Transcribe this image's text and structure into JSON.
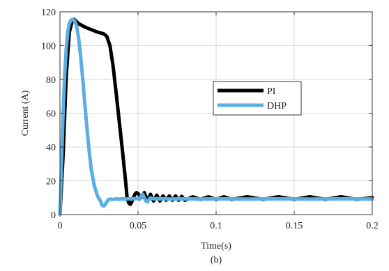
{
  "chart_data": {
    "type": "line",
    "title": "",
    "caption": "(b)",
    "xlabel": "Time(s)",
    "ylabel": "Current (A)",
    "xlim": [
      0,
      0.2
    ],
    "ylim": [
      0,
      120
    ],
    "x_ticks": [
      0,
      0.05,
      0.1,
      0.15,
      0.2
    ],
    "x_tick_labels": [
      "0",
      "0.05",
      "0.1",
      "0.15",
      "0.2"
    ],
    "y_ticks": [
      0,
      20,
      40,
      60,
      80,
      100,
      120
    ],
    "y_tick_labels": [
      "0",
      "20",
      "40",
      "60",
      "80",
      "100",
      "120"
    ],
    "grid": true,
    "legend_position": "center-right",
    "series": [
      {
        "name": "PI",
        "color": "#000000",
        "points": [
          [
            0,
            0
          ],
          [
            0.002,
            35
          ],
          [
            0.004,
            82
          ],
          [
            0.006,
            108
          ],
          [
            0.008,
            115
          ],
          [
            0.009,
            115.5
          ],
          [
            0.012,
            113
          ],
          [
            0.016,
            111
          ],
          [
            0.02,
            109.5
          ],
          [
            0.024,
            108
          ],
          [
            0.028,
            107
          ],
          [
            0.03,
            105.5
          ],
          [
            0.032,
            100
          ],
          [
            0.034,
            88
          ],
          [
            0.036,
            72
          ],
          [
            0.038,
            55
          ],
          [
            0.04,
            38
          ],
          [
            0.042,
            20
          ],
          [
            0.043,
            10
          ],
          [
            0.044,
            7
          ],
          [
            0.045,
            6
          ],
          [
            0.046,
            7.5
          ],
          [
            0.047,
            10
          ],
          [
            0.048,
            12
          ],
          [
            0.049,
            13
          ],
          [
            0.05,
            12.5
          ],
          [
            0.052,
            10
          ],
          [
            0.054,
            13
          ],
          [
            0.056,
            8
          ],
          [
            0.058,
            12
          ],
          [
            0.06,
            8
          ],
          [
            0.062,
            11.5
          ],
          [
            0.064,
            8
          ],
          [
            0.066,
            11
          ],
          [
            0.068,
            8.5
          ],
          [
            0.07,
            11
          ],
          [
            0.072,
            8.5
          ],
          [
            0.074,
            11
          ],
          [
            0.076,
            8.5
          ],
          [
            0.078,
            10.8
          ],
          [
            0.08,
            8.5
          ],
          [
            0.085,
            10.5
          ],
          [
            0.09,
            9
          ],
          [
            0.095,
            10.5
          ],
          [
            0.1,
            9
          ],
          [
            0.105,
            10.5
          ],
          [
            0.11,
            9
          ],
          [
            0.12,
            10.5
          ],
          [
            0.13,
            9
          ],
          [
            0.14,
            10.5
          ],
          [
            0.15,
            9
          ],
          [
            0.16,
            10.5
          ],
          [
            0.17,
            9
          ],
          [
            0.18,
            10.5
          ],
          [
            0.19,
            9
          ],
          [
            0.2,
            10
          ]
        ]
      },
      {
        "name": "DHP",
        "color": "#5aaee0",
        "points": [
          [
            0,
            0
          ],
          [
            0.001,
            30
          ],
          [
            0.002,
            60
          ],
          [
            0.003,
            82
          ],
          [
            0.004,
            98
          ],
          [
            0.005,
            108
          ],
          [
            0.006,
            113
          ],
          [
            0.007,
            115
          ],
          [
            0.008,
            115.5
          ],
          [
            0.009,
            115
          ],
          [
            0.01,
            113.5
          ],
          [
            0.011,
            110
          ],
          [
            0.012,
            104
          ],
          [
            0.013,
            96
          ],
          [
            0.014,
            86
          ],
          [
            0.015,
            76
          ],
          [
            0.016,
            65
          ],
          [
            0.017,
            54
          ],
          [
            0.018,
            44
          ],
          [
            0.019,
            35
          ],
          [
            0.02,
            27
          ],
          [
            0.022,
            17
          ],
          [
            0.024,
            11
          ],
          [
            0.026,
            8
          ],
          [
            0.027,
            5.5
          ],
          [
            0.028,
            5
          ],
          [
            0.029,
            6
          ],
          [
            0.03,
            7.5
          ],
          [
            0.031,
            8.8
          ],
          [
            0.032,
            9.2
          ],
          [
            0.034,
            9
          ],
          [
            0.036,
            9.3
          ],
          [
            0.038,
            9.1
          ],
          [
            0.04,
            9.3
          ],
          [
            0.042,
            9.1
          ],
          [
            0.044,
            9.4
          ],
          [
            0.046,
            9.2
          ],
          [
            0.048,
            9.5
          ],
          [
            0.05,
            9.5
          ],
          [
            0.051,
            9
          ],
          [
            0.052,
            11
          ],
          [
            0.053,
            12
          ],
          [
            0.054,
            10
          ],
          [
            0.055,
            8
          ],
          [
            0.056,
            7.5
          ],
          [
            0.057,
            9
          ],
          [
            0.058,
            10
          ],
          [
            0.06,
            9.3
          ],
          [
            0.065,
            9.4
          ],
          [
            0.07,
            9.2
          ],
          [
            0.08,
            9.3
          ],
          [
            0.09,
            9.2
          ],
          [
            0.1,
            9.3
          ],
          [
            0.12,
            9.2
          ],
          [
            0.14,
            9.3
          ],
          [
            0.16,
            9.2
          ],
          [
            0.18,
            9.3
          ],
          [
            0.2,
            9.2
          ]
        ]
      }
    ]
  }
}
